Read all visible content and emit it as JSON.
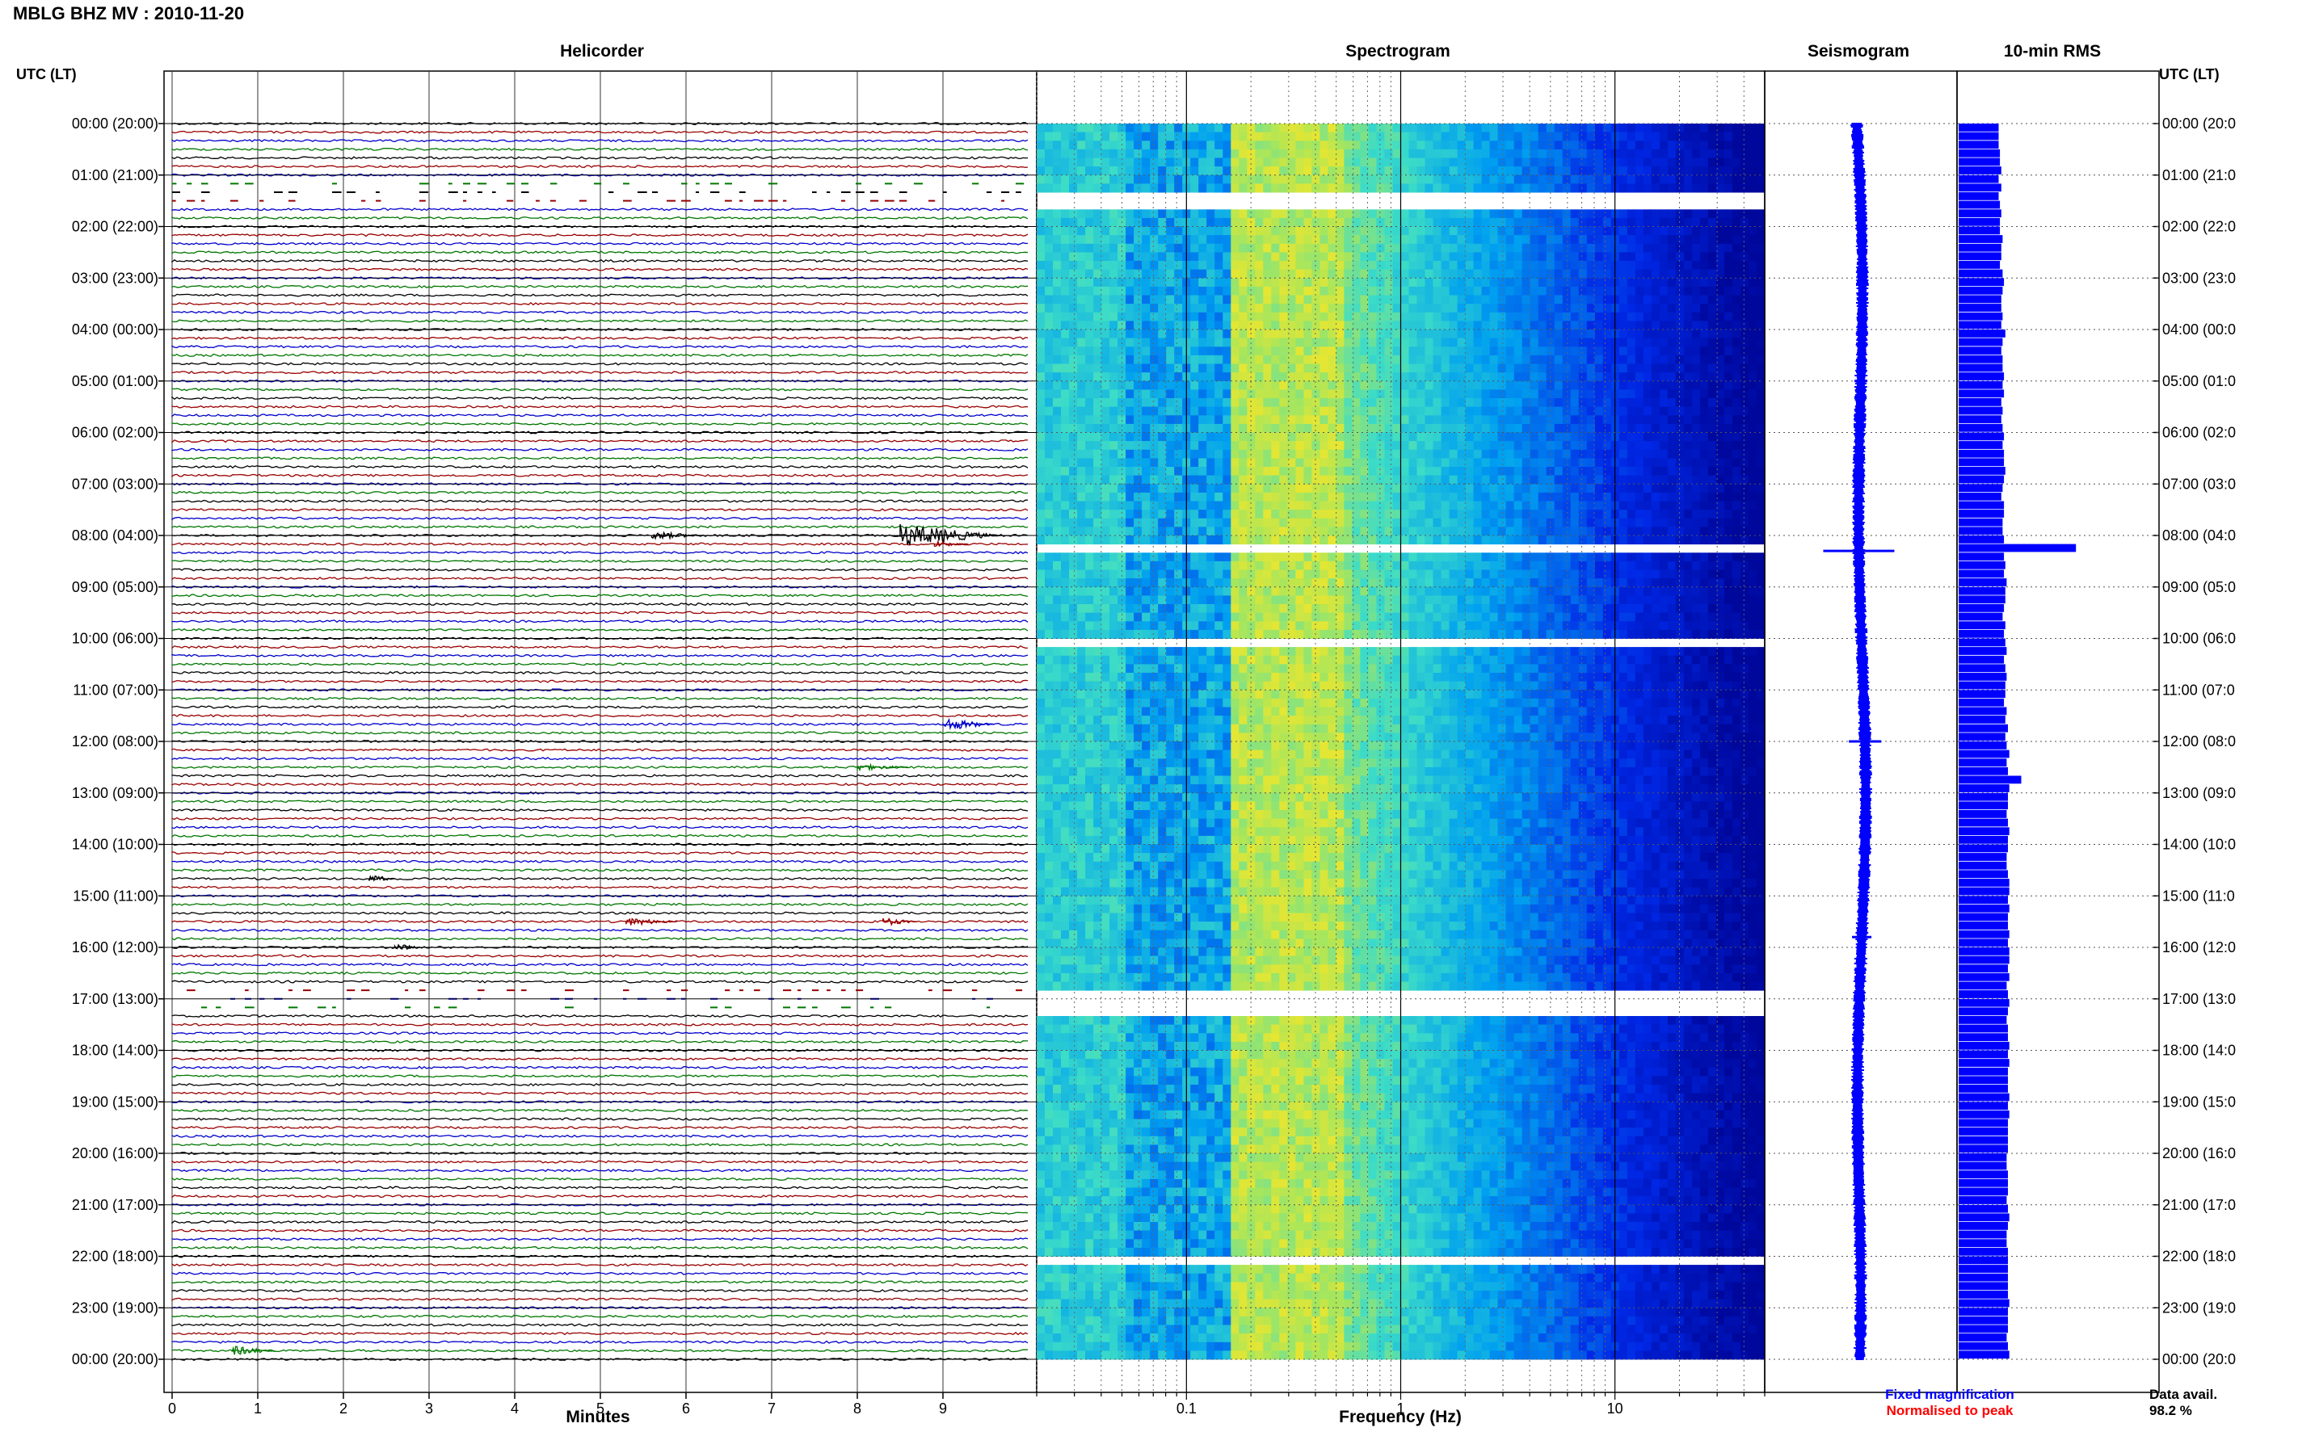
{
  "header": {
    "title": "MBLG BHZ MV : 2010-11-20"
  },
  "panels": {
    "helicorder": "Helicorder",
    "spectrogram": "Spectrogram",
    "seismogram": "Seismogram",
    "rms": "10-min RMS"
  },
  "axis": {
    "left_title": "UTC (LT)",
    "right_title": "UTC (LT)",
    "time_labels": [
      "00:00 (20:00)",
      "01:00 (21:00)",
      "02:00 (22:00)",
      "03:00 (23:00)",
      "04:00 (00:00)",
      "05:00 (01:00)",
      "06:00 (02:00)",
      "07:00 (03:00)",
      "08:00 (04:00)",
      "09:00 (05:00)",
      "10:00 (06:00)",
      "11:00 (07:00)",
      "12:00 (08:00)",
      "13:00 (09:00)",
      "14:00 (10:00)",
      "15:00 (11:00)",
      "16:00 (12:00)",
      "17:00 (13:00)",
      "18:00 (14:00)",
      "19:00 (15:00)",
      "20:00 (16:00)",
      "21:00 (17:00)",
      "22:00 (18:00)",
      "23:00 (19:00)",
      "00:00 (20:00)"
    ],
    "right_time_labels": [
      "00:00 (20:0",
      "01:00 (21:0",
      "02:00 (22:0",
      "03:00 (23:0",
      "04:00 (00:0",
      "05:00 (01:0",
      "06:00 (02:0",
      "07:00 (03:0",
      "08:00 (04:0",
      "09:00 (05:0",
      "10:00 (06:0",
      "11:00 (07:0",
      "12:00 (08:0",
      "13:00 (09:0",
      "14:00 (10:0",
      "15:00 (11:0",
      "16:00 (12:0",
      "17:00 (13:0",
      "18:00 (14:0",
      "19:00 (15:0",
      "20:00 (16:0",
      "21:00 (17:0",
      "22:00 (18:0",
      "23:00 (19:0",
      "00:00 (20:0"
    ],
    "minutes_label": "Minutes",
    "minutes_ticks": [
      "0",
      "1",
      "2",
      "3",
      "4",
      "5",
      "6",
      "7",
      "8",
      "9"
    ],
    "frequency_label": "Frequency (Hz)",
    "frequency_ticks": [
      "0.1",
      "1",
      "10"
    ]
  },
  "legend": {
    "fixed": "Fixed magnification",
    "normalised": "Normalised to peak",
    "fixed_color": "#0000ff",
    "normalised_color": "#ff0000"
  },
  "data_avail": {
    "label": "Data avail.",
    "value": "98.2 %"
  },
  "colors": {
    "trace_cycle": [
      "#000000",
      "#ff0000",
      "#0000ff",
      "#008000"
    ],
    "helicorder_trace_cycle": [
      "#000000",
      "#990000",
      "#0000cc",
      "#007700"
    ],
    "spectrogram_low": "#000088",
    "spectrogram_high": "#dddd33",
    "rms_fill": "#0000ff"
  },
  "chart_data": {
    "type": "heatmap",
    "helicorder": {
      "x_unit": "minutes",
      "xlim": [
        0,
        10
      ],
      "minutes_per_line": 10,
      "lines": 145,
      "gaps_utc_hours": [
        [
          1.15,
          1.6
        ],
        [
          16.8,
          17.25
        ]
      ],
      "events": [
        {
          "line": 48,
          "minute": 8.5,
          "amp": 14,
          "len": 1.2
        },
        {
          "line": 48,
          "minute": 5.6,
          "amp": 5,
          "len": 0.6
        },
        {
          "line": 49,
          "minute": 8.9,
          "amp": 4,
          "len": 0.4
        },
        {
          "line": 70,
          "minute": 9.0,
          "amp": 8,
          "len": 0.6
        },
        {
          "line": 75,
          "minute": 8.0,
          "amp": 4,
          "len": 0.6
        },
        {
          "line": 88,
          "minute": 2.3,
          "amp": 5,
          "len": 0.3
        },
        {
          "line": 93,
          "minute": 5.3,
          "amp": 5,
          "len": 0.6
        },
        {
          "line": 93,
          "minute": 8.3,
          "amp": 5,
          "len": 0.4
        },
        {
          "line": 96,
          "minute": 2.6,
          "amp": 5,
          "len": 0.3
        },
        {
          "line": 143,
          "minute": 0.7,
          "amp": 6,
          "len": 0.5
        }
      ]
    },
    "spectrogram": {
      "x_unit": "Hz",
      "xlog": true,
      "xlim": [
        0.02,
        50
      ],
      "gaps_utc_hours": [
        [
          1.4,
          1.65
        ],
        [
          8.2,
          8.32
        ],
        [
          10.04,
          10.1
        ],
        [
          16.85,
          17.1
        ],
        [
          17.2,
          17.4
        ],
        [
          22.05,
          22.1
        ]
      ],
      "peak_band_hz": [
        0.15,
        0.5
      ]
    },
    "seismogram": {
      "unit": "relative amplitude",
      "spikes": [
        {
          "hour": 8.3,
          "amp": 44
        },
        {
          "hour": 12.0,
          "amp": 20
        },
        {
          "hour": 15.8,
          "amp": 12
        },
        {
          "hour": 5.0,
          "amp": 8
        }
      ]
    },
    "rms_10min": {
      "unit": "relative",
      "ylim_hours": [
        0,
        24
      ],
      "values": [
        30,
        30,
        30,
        31,
        31,
        32,
        30,
        32,
        30,
        31,
        32,
        31,
        31,
        33,
        32,
        32,
        31,
        33,
        34,
        33,
        32,
        32,
        33,
        32,
        35,
        33,
        32,
        33,
        33,
        34,
        33,
        34,
        32,
        33,
        32,
        33,
        34,
        33,
        34,
        34,
        35,
        34,
        33,
        32,
        34,
        34,
        33,
        33,
        34,
        88,
        34,
        35,
        34,
        36,
        35,
        35,
        34,
        33,
        35,
        34,
        35,
        36,
        34,
        35,
        36,
        35,
        35,
        34,
        36,
        35,
        37,
        35,
        36,
        38,
        36,
        37,
        47,
        38,
        37,
        37,
        36,
        37,
        38,
        37,
        37,
        36,
        36,
        37,
        38,
        38,
        37,
        38,
        37,
        37,
        38,
        37,
        38,
        38,
        37,
        38,
        36,
        37,
        38,
        37,
        36,
        37,
        37,
        38,
        37,
        38,
        37,
        37,
        37,
        38,
        37,
        38,
        37,
        37,
        37,
        37,
        36,
        36,
        37,
        37,
        37,
        36,
        37,
        38,
        37,
        36,
        36,
        37,
        37,
        37,
        37,
        37,
        37,
        38,
        37,
        37,
        37,
        36,
        37,
        38
      ]
    }
  }
}
